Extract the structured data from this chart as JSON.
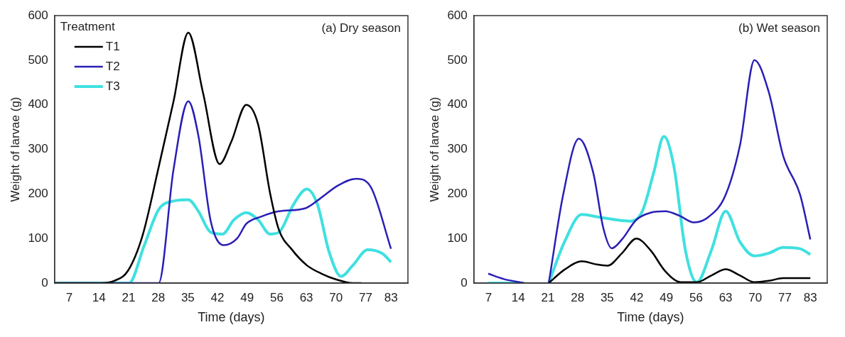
{
  "chart_data": [
    {
      "type": "line",
      "title": "(a) Dry season",
      "xlabel": "Time (days)",
      "ylabel": "Weight of larvae (g)",
      "legend": "top left",
      "legend_title": "Treatment",
      "grid": false,
      "marker": "none",
      "line_style": "solid",
      "xlim": [
        3.5,
        87
      ],
      "xticks": [
        7,
        14,
        21,
        28,
        35,
        42,
        49,
        56,
        63,
        70,
        77,
        83
      ],
      "ylim": [
        0,
        600
      ],
      "yticks": [
        0,
        100,
        200,
        300,
        400,
        500,
        600
      ],
      "series": [
        {
          "name": "T1",
          "color": "#000000",
          "x": [
            3.5,
            14.5,
            17.6,
            20.8,
            24.3,
            28.1,
            31.6,
            35.1,
            38.6,
            42.5,
            45.3,
            48.8,
            51.6,
            54.4,
            56.5,
            59.6,
            63.1,
            66.6,
            70.1,
            74,
            76
          ],
          "values": [
            0,
            0,
            5,
            27,
            107,
            260,
            407,
            562,
            426,
            267,
            318,
            400,
            356,
            203,
            120,
            75,
            40,
            21,
            8,
            0,
            0
          ]
        },
        {
          "name": "T2",
          "color": "#2a1fb5",
          "x": [
            3.5,
            28.1,
            31.6,
            35.1,
            37.5,
            40.4,
            43.5,
            46.7,
            48.8,
            52.3,
            56.5,
            62.8,
            66.3,
            70.5,
            74.7,
            78.2,
            83
          ],
          "values": [
            0,
            0,
            254,
            408,
            330,
            139,
            85,
            101,
            133,
            149,
            161,
            168,
            190,
            219,
            234,
            216,
            77
          ]
        },
        {
          "name": "T3",
          "color": "#40e0e0",
          "x": [
            3.5,
            21.1,
            24.6,
            28.1,
            31.6,
            35.1,
            37.5,
            40.4,
            43.2,
            45.9,
            48.8,
            51.6,
            54.4,
            56.5,
            60,
            63.1,
            65.6,
            68.4,
            71.2,
            74,
            77.5,
            81,
            83
          ],
          "values": [
            0,
            0,
            82,
            165,
            184,
            187,
            161,
            114,
            110,
            142,
            158,
            142,
            110,
            114,
            177,
            211,
            177,
            69,
            15,
            40,
            75,
            66,
            47
          ]
        }
      ]
    },
    {
      "type": "line",
      "title": "(b) Wet season",
      "xlabel": "Time (days)",
      "ylabel": "Weight of larvae (g)",
      "grid": false,
      "marker": "none",
      "line_style": "solid",
      "xlim": [
        3.5,
        87
      ],
      "xticks": [
        7,
        14,
        21,
        28,
        35,
        42,
        49,
        56,
        63,
        70,
        77,
        83
      ],
      "ylim": [
        0,
        600
      ],
      "yticks": [
        0,
        100,
        200,
        300,
        400,
        500,
        600
      ],
      "series": [
        {
          "color": "#000000",
          "x": [
            21.2,
            24.9,
            29,
            32.4,
            35.1,
            38.5,
            41.9,
            45.3,
            48.7,
            52.4,
            56.2,
            59.6,
            63,
            66.4,
            69.8,
            73.2,
            76.6,
            83
          ],
          "values": [
            0,
            30,
            49,
            42,
            39,
            67,
            100,
            73,
            27,
            2,
            2,
            17,
            31,
            17,
            2,
            5,
            11,
            11
          ]
        },
        {
          "color": "#2a1fb5",
          "x": [
            6.9,
            10.6,
            15.4,
            18,
            21.2,
            24.6,
            28.3,
            31.7,
            34.1,
            36.1,
            38.5,
            41.9,
            45.3,
            48.7,
            52.1,
            55.5,
            58.9,
            63,
            66.4,
            69.8,
            73.2,
            76.6,
            80.6,
            83
          ],
          "values": [
            21,
            9,
            0,
            null,
            0,
            198,
            324,
            248,
            123,
            78,
            98,
            142,
            158,
            161,
            151,
            136,
            148,
            198,
            310,
            500,
            428,
            285,
            198,
            98
          ]
        },
        {
          "color": "#40e0e0",
          "x": [
            6.9,
            15.4,
            18,
            21.2,
            24.9,
            29,
            33,
            37.1,
            40.5,
            43.3,
            46,
            48.4,
            50.8,
            53.5,
            56.2,
            59.6,
            63,
            66.4,
            69.8,
            73.2,
            76.6,
            80.6,
            83
          ],
          "values": [
            0,
            0,
            null,
            0,
            92,
            154,
            148,
            142,
            139,
            161,
            248,
            329,
            260,
            73,
            2,
            73,
            161,
            92,
            61,
            67,
            80,
            77,
            64
          ]
        }
      ]
    }
  ]
}
